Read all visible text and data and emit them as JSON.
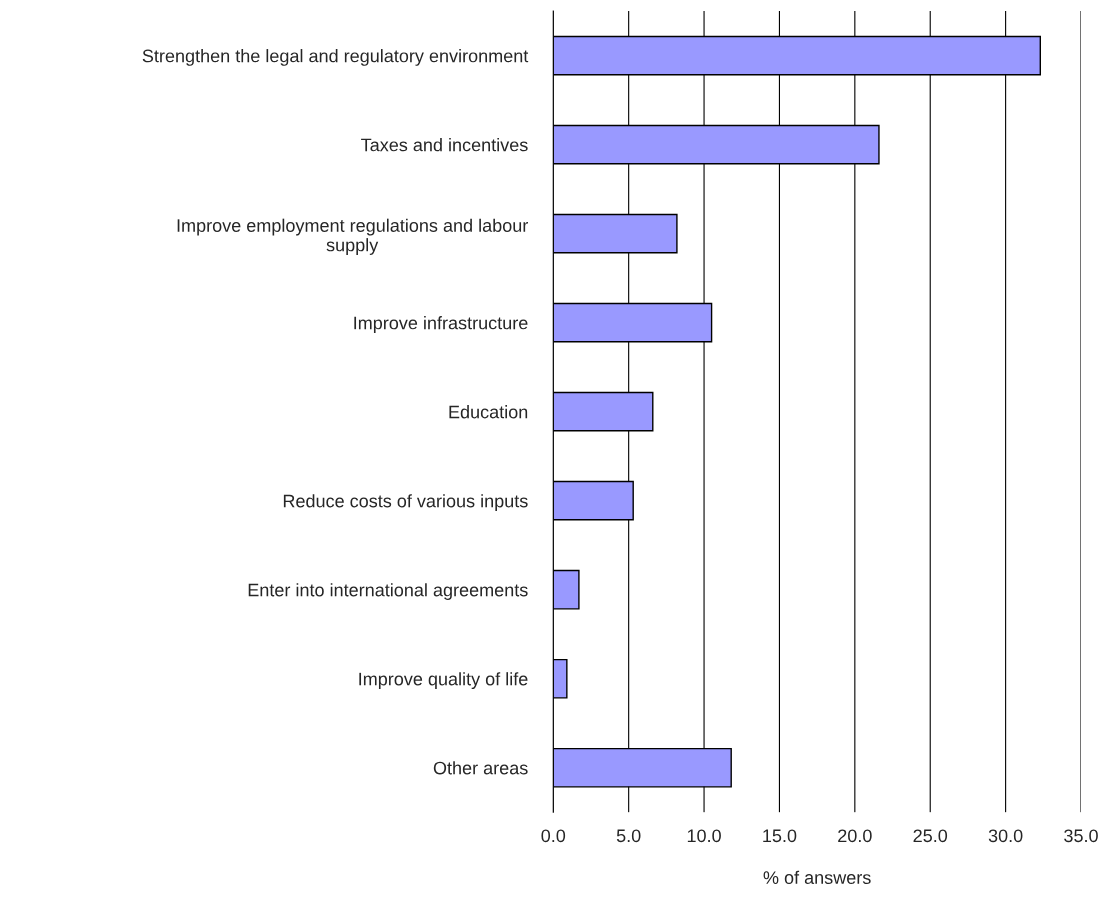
{
  "chart_data": {
    "type": "bar",
    "orientation": "horizontal",
    "xlabel": "% of answers",
    "categories": [
      "Strengthen the legal and regulatory environment",
      "Taxes and incentives",
      "Improve employment regulations and labour\nsupply",
      "Improve infrastructure",
      "Education",
      "Reduce costs of various inputs",
      "Enter into international agreements",
      "Improve quality of life",
      "Other areas"
    ],
    "values": [
      32.3,
      21.6,
      8.2,
      10.5,
      6.6,
      5.3,
      1.7,
      0.9,
      11.8
    ],
    "color": "#9999ff",
    "xlim": [
      0,
      35
    ],
    "xticks": [
      {
        "value": 0,
        "label": "0.0"
      },
      {
        "value": 5,
        "label": "5.0"
      },
      {
        "value": 10,
        "label": "10.0"
      },
      {
        "value": 15,
        "label": "15.0"
      },
      {
        "value": 20,
        "label": "20.0"
      },
      {
        "value": 25,
        "label": "25.0"
      },
      {
        "value": 30,
        "label": "30.0"
      },
      {
        "value": 35,
        "label": "35.0"
      }
    ],
    "grid": "x",
    "legend": false
  }
}
